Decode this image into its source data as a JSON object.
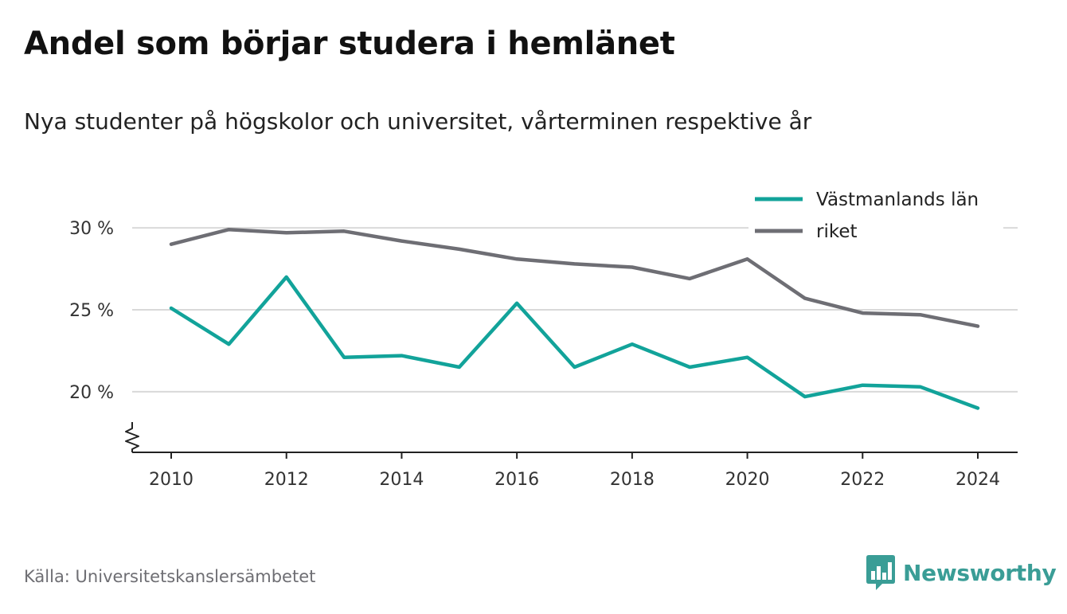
{
  "title": "Andel som börjar studera i hemlänet",
  "subtitle": "Nya studenter på högskolor och universitet, vårterminen respektive år",
  "source": "Källa: Universitetskanslersämbetet",
  "brand": {
    "name": "Newsworthy",
    "color": "#3a9d96",
    "icon": "bar-chart-badge-icon"
  },
  "chart_data": {
    "type": "line",
    "x": [
      2010,
      2011,
      2012,
      2013,
      2014,
      2015,
      2016,
      2017,
      2018,
      2019,
      2020,
      2021,
      2022,
      2023,
      2024
    ],
    "series": [
      {
        "name": "Västmanlands län",
        "color": "#12a39a",
        "values": [
          25.1,
          22.9,
          27.0,
          22.1,
          22.2,
          21.5,
          25.4,
          21.5,
          22.9,
          21.5,
          22.1,
          19.7,
          20.4,
          20.3,
          19.0
        ]
      },
      {
        "name": "riket",
        "color": "#6e6e74",
        "values": [
          29.0,
          29.9,
          29.7,
          29.8,
          29.2,
          28.7,
          28.1,
          27.8,
          27.6,
          26.9,
          28.1,
          25.7,
          24.8,
          24.7,
          24.0
        ]
      }
    ],
    "xticks": [
      2010,
      2012,
      2014,
      2016,
      2018,
      2020,
      2022,
      2024
    ],
    "xtick_labels": [
      "2010",
      "2012",
      "2014",
      "2016",
      "2018",
      "2020",
      "2022",
      "2024"
    ],
    "yticks": [
      20,
      25,
      30
    ],
    "ytick_labels": [
      "20 %",
      "25 %",
      "30 %"
    ],
    "xlim": [
      2010,
      2024
    ],
    "ylim": [
      16.3,
      30.3
    ],
    "axis_break": true,
    "grid": true,
    "legend_position": "top-right"
  }
}
